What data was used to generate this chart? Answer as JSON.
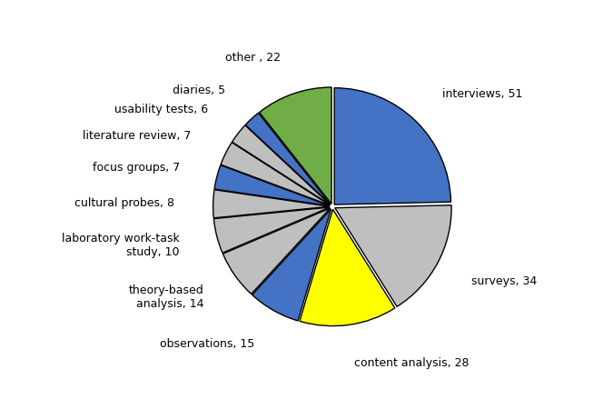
{
  "labels": [
    "interviews, 51",
    "surveys, 34",
    "content analysis, 28",
    "observations, 15",
    "theory-based\nanalysis, 14",
    "laboratory work-task\nstudy, 10",
    "cultural probes, 8",
    "focus groups, 7",
    "literature review, 7",
    "usability tests, 6",
    "diaries, 5",
    "other , 22"
  ],
  "values": [
    51,
    34,
    28,
    15,
    14,
    10,
    8,
    7,
    7,
    6,
    5,
    22
  ],
  "colors": [
    "#4472C4",
    "#BFBFBF",
    "#FFFF00",
    "#4472C4",
    "#BFBFBF",
    "#BFBFBF",
    "#BFBFBF",
    "#4472C4",
    "#BFBFBF",
    "#BFBFBF",
    "#4472C4",
    "#70AD47"
  ],
  "startangle": 90,
  "figsize": [
    6.75,
    4.5
  ],
  "dpi": 100,
  "label_fontsize": 9,
  "explode_all": 0.02
}
